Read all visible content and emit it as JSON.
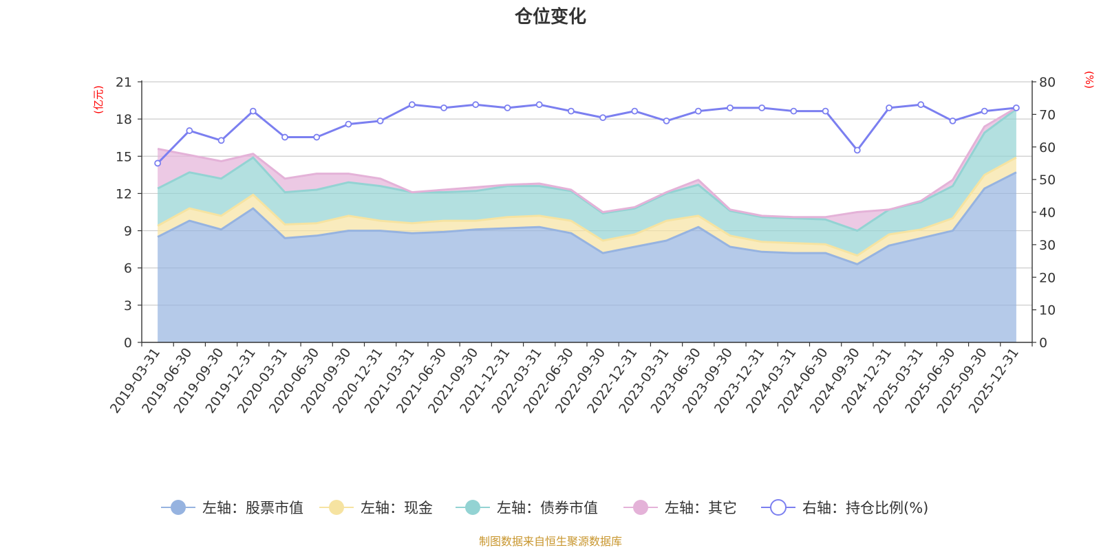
{
  "chart_data": {
    "type": "area",
    "title": "仓位变化",
    "left_unit": "(亿元)",
    "right_unit": "(%)",
    "left_ylim": [
      0,
      21
    ],
    "left_ticks": [
      0,
      3,
      6,
      9,
      12,
      15,
      18,
      21
    ],
    "right_ylim": [
      0,
      80
    ],
    "right_ticks": [
      0,
      10,
      20,
      30,
      40,
      50,
      60,
      70,
      80
    ],
    "categories": [
      "2019-03-31",
      "2019-06-30",
      "2019-09-30",
      "2019-12-31",
      "2020-03-31",
      "2020-06-30",
      "2020-09-30",
      "2020-12-31",
      "2021-03-31",
      "2021-06-30",
      "2021-09-30",
      "2021-12-31",
      "2022-03-31",
      "2022-06-30",
      "2022-09-30",
      "2022-12-31",
      "2023-03-31",
      "2023-06-30",
      "2023-09-30",
      "2023-12-31",
      "2024-03-31",
      "2024-06-30",
      "2024-09-30",
      "2024-12-31",
      "2025-03-31",
      "2025-06-30",
      "2025-09-30",
      "2025-12-31"
    ],
    "series": [
      {
        "name": "左轴：股票市值",
        "axis": "left",
        "stack": true,
        "color": "#96b3e0",
        "values": [
          8.5,
          9.8,
          9.1,
          10.8,
          8.4,
          8.6,
          9.0,
          9.0,
          8.8,
          8.9,
          9.1,
          9.2,
          9.3,
          8.8,
          7.2,
          7.7,
          8.2,
          9.3,
          7.7,
          7.3,
          7.2,
          7.2,
          6.3,
          7.8,
          8.4,
          9.0,
          12.4,
          13.7
        ]
      },
      {
        "name": "左轴：现金",
        "axis": "left",
        "stack": true,
        "color": "#f6e3a1",
        "values": [
          0.9,
          1.0,
          1.1,
          1.1,
          1.1,
          1.0,
          1.2,
          0.8,
          0.8,
          0.9,
          0.7,
          0.9,
          0.9,
          1.0,
          1.0,
          1.0,
          1.6,
          0.9,
          0.9,
          0.8,
          0.8,
          0.7,
          0.7,
          0.9,
          0.7,
          1.0,
          1.1,
          1.2
        ]
      },
      {
        "name": "左轴：债券市值",
        "axis": "left",
        "stack": true,
        "color": "#93d3d3",
        "values": [
          3.0,
          2.9,
          3.0,
          3.0,
          2.6,
          2.7,
          2.7,
          2.8,
          2.5,
          2.3,
          2.4,
          2.5,
          2.4,
          2.4,
          2.2,
          2.1,
          2.2,
          2.5,
          2.0,
          2.0,
          2.0,
          2.0,
          2.0,
          2.0,
          2.2,
          2.6,
          3.4,
          3.9
        ]
      },
      {
        "name": "左轴：其它",
        "axis": "left",
        "stack": true,
        "color": "#e4b2d8",
        "values": [
          3.2,
          1.4,
          1.4,
          0.3,
          1.1,
          1.3,
          0.7,
          0.6,
          0.0,
          0.2,
          0.3,
          0.1,
          0.2,
          0.1,
          0.1,
          0.1,
          0.1,
          0.4,
          0.1,
          0.1,
          0.1,
          0.2,
          1.5,
          0.0,
          0.1,
          0.5,
          0.5,
          0.1
        ]
      },
      {
        "name": "右轴：持仓比例(%)",
        "axis": "right",
        "stack": false,
        "color": "#7b7ff0",
        "values": [
          55,
          65,
          62,
          71,
          63,
          63,
          67,
          68,
          73,
          72,
          73,
          72,
          73,
          71,
          69,
          71,
          68,
          71,
          72,
          72,
          71,
          71,
          59,
          72,
          73,
          68,
          71,
          72
        ]
      }
    ]
  },
  "footer": "制图数据来自恒生聚源数据库"
}
